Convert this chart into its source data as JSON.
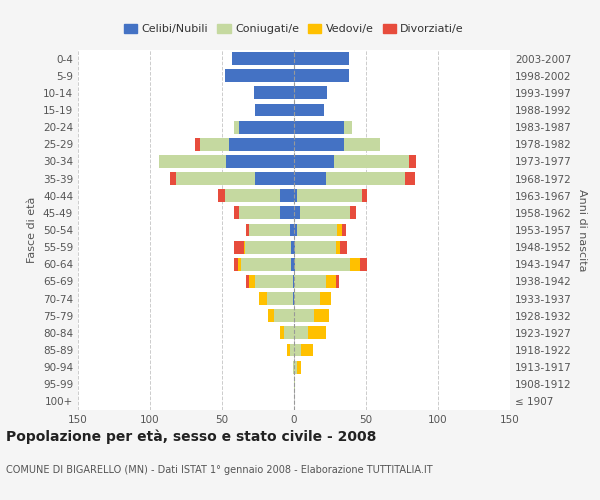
{
  "age_groups": [
    "100+",
    "95-99",
    "90-94",
    "85-89",
    "80-84",
    "75-79",
    "70-74",
    "65-69",
    "60-64",
    "55-59",
    "50-54",
    "45-49",
    "40-44",
    "35-39",
    "30-34",
    "25-29",
    "20-24",
    "15-19",
    "10-14",
    "5-9",
    "0-4"
  ],
  "birth_years": [
    "≤ 1907",
    "1908-1912",
    "1913-1917",
    "1918-1922",
    "1923-1927",
    "1928-1932",
    "1933-1937",
    "1938-1942",
    "1943-1947",
    "1948-1952",
    "1953-1957",
    "1958-1962",
    "1963-1967",
    "1968-1972",
    "1973-1977",
    "1978-1982",
    "1983-1987",
    "1988-1992",
    "1993-1997",
    "1998-2002",
    "2003-2007"
  ],
  "male": {
    "celibi": [
      0,
      0,
      0,
      0,
      0,
      0,
      1,
      1,
      2,
      2,
      3,
      10,
      10,
      27,
      47,
      45,
      38,
      27,
      28,
      48,
      43
    ],
    "coniugati": [
      0,
      0,
      1,
      3,
      7,
      14,
      18,
      26,
      35,
      32,
      28,
      28,
      38,
      55,
      47,
      20,
      4,
      0,
      0,
      0,
      0
    ],
    "vedovi": [
      0,
      0,
      0,
      2,
      3,
      4,
      5,
      4,
      2,
      1,
      0,
      0,
      0,
      0,
      0,
      0,
      0,
      0,
      0,
      0,
      0
    ],
    "divorziati": [
      0,
      0,
      0,
      0,
      0,
      0,
      0,
      2,
      3,
      7,
      2,
      4,
      5,
      4,
      0,
      4,
      0,
      0,
      0,
      0,
      0
    ]
  },
  "female": {
    "nubili": [
      0,
      0,
      0,
      0,
      0,
      0,
      0,
      0,
      1,
      1,
      2,
      4,
      2,
      22,
      28,
      35,
      35,
      21,
      23,
      38,
      38
    ],
    "coniugate": [
      0,
      1,
      2,
      5,
      10,
      14,
      18,
      22,
      38,
      28,
      28,
      35,
      45,
      55,
      52,
      25,
      5,
      0,
      0,
      0,
      0
    ],
    "vedove": [
      0,
      0,
      3,
      8,
      12,
      10,
      8,
      7,
      7,
      3,
      3,
      0,
      0,
      0,
      0,
      0,
      0,
      0,
      0,
      0,
      0
    ],
    "divorziate": [
      0,
      0,
      0,
      0,
      0,
      0,
      0,
      2,
      5,
      5,
      3,
      4,
      4,
      7,
      5,
      0,
      0,
      0,
      0,
      0,
      0
    ]
  },
  "colors": {
    "celibi": "#4472c4",
    "coniugati": "#c5d9a0",
    "vedovi": "#ffc000",
    "divorziati": "#e74c3c"
  },
  "title": "Popolazione per età, sesso e stato civile - 2008",
  "subtitle": "COMUNE DI BIGARELLO (MN) - Dati ISTAT 1° gennaio 2008 - Elaborazione TUTTITALIA.IT",
  "ylabel_left": "Fasce di età",
  "ylabel_right": "Anni di nascita",
  "xlim": 150,
  "bg_color": "#f5f5f5",
  "plot_bg": "#ffffff",
  "grid_color": "#cccccc"
}
